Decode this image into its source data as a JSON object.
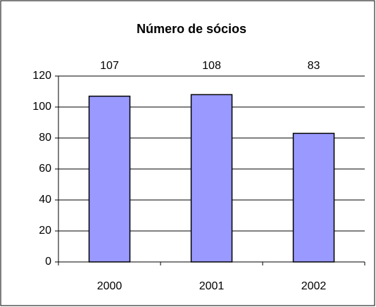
{
  "chart_data": {
    "type": "bar",
    "title": "Número de sócios",
    "categories": [
      "2000",
      "2001",
      "2002"
    ],
    "values": [
      107,
      108,
      83
    ],
    "color": "#9999ff",
    "ylim": [
      0,
      120
    ],
    "yticks": [
      0,
      20,
      40,
      60,
      80,
      100,
      120
    ],
    "grid": true
  }
}
